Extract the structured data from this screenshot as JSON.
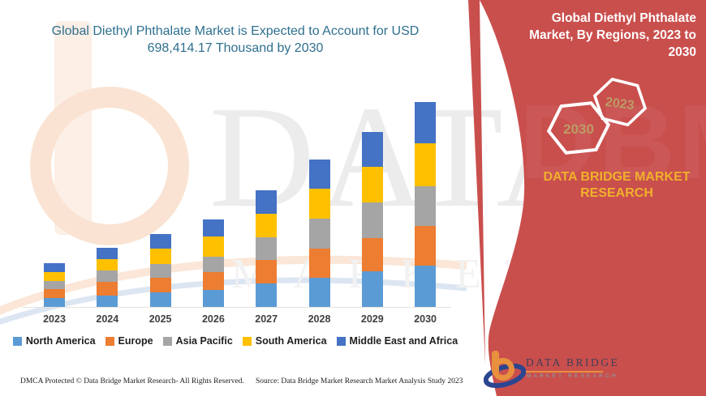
{
  "title": "Global Diethyl Phthalate Market is Expected to Account for USD 698,414.17 Thousand by 2030",
  "watermark": {
    "line1": "DATA BRIDGE",
    "line2": "MARKET RESEARCH"
  },
  "footer": {
    "dmca": "DMCA Protected © Data Bridge Market Research- All Rights Reserved.",
    "source": "Source: Data Bridge Market Research Market Analysis Study 2023"
  },
  "right_panel": {
    "heading": "Global Diethyl Phthalate Market, By Regions, 2023 to 2030",
    "hexagons": [
      {
        "label": "2030"
      },
      {
        "label": "2023"
      }
    ],
    "brand_line1": "DATA BRIDGE MARKET",
    "brand_line2": "RESEARCH",
    "logo": {
      "name": "DATA BRIDGE",
      "subtitle": "MARKET RESEARCH"
    },
    "colors": {
      "panel_red": "#C94F4D",
      "brand_yellow": "#F0B02C",
      "hex_year_gold": "#BC9B66"
    }
  },
  "colors": {
    "title_teal": "#2E6F8E"
  },
  "chart_data": {
    "type": "bar",
    "stacked": true,
    "title": "Global Diethyl Phthalate Market is Expected to Account for USD 698,414.17 Thousand by 2030",
    "unit": "USD Thousand",
    "categories": [
      "2023",
      "2024",
      "2025",
      "2026",
      "2027",
      "2028",
      "2029",
      "2030"
    ],
    "series": [
      {
        "name": "North America",
        "color": "#5B9BD5",
        "values": [
          30250,
          39300,
          48700,
          57800,
          78900,
          99000,
          121000,
          142150
        ]
      },
      {
        "name": "Europe",
        "color": "#ED7D31",
        "values": [
          29400,
          45900,
          50300,
          61300,
          81700,
          99000,
          114700,
          134750
        ]
      },
      {
        "name": "Asia Pacific",
        "color": "#A5A5A5",
        "values": [
          28300,
          38500,
          47600,
          51400,
          77800,
          102600,
          121800,
          135570
        ]
      },
      {
        "name": "South America",
        "color": "#FFC000",
        "values": [
          29400,
          39300,
          53100,
          70400,
          78900,
          102600,
          121800,
          144920
        ]
      },
      {
        "name": "Middle East and Africa",
        "color": "#4472C4",
        "values": [
          31100,
          37700,
          50500,
          58800,
          81400,
          100000,
          117400,
          141024.17
        ]
      }
    ],
    "totals": [
      148450,
      200700,
      250200,
      299700,
      398700,
      503200,
      596700,
      698414.17
    ],
    "ylim": [
      0,
      720000
    ],
    "y_axis_visible": false,
    "gridlines": false,
    "legend_position": "bottom"
  }
}
